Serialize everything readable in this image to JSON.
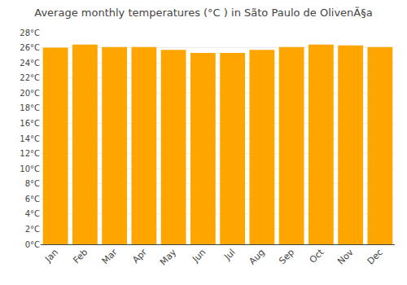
{
  "chart_data": {
    "type": "bar",
    "title": "Average monthly temperatures (°C ) in Sãto Paulo de OlivenÃ§a",
    "categories": [
      "Jan",
      "Feb",
      "Mar",
      "Apr",
      "May",
      "Jun",
      "Jul",
      "Aug",
      "Sep",
      "Oct",
      "Nov",
      "Dec"
    ],
    "values": [
      26.0,
      26.4,
      26.1,
      26.1,
      25.7,
      25.3,
      25.3,
      25.7,
      26.1,
      26.4,
      26.3,
      26.1
    ],
    "color": "#FFA500",
    "ylim": [
      0,
      28
    ],
    "yticks": [
      {
        "value": 0,
        "label": "0°C"
      },
      {
        "value": 2,
        "label": "2°C"
      },
      {
        "value": 4,
        "label": "4°C"
      },
      {
        "value": 6,
        "label": "6°C"
      },
      {
        "value": 8,
        "label": "8°C"
      },
      {
        "value": 10,
        "label": "10°C"
      },
      {
        "value": 12,
        "label": "12°C"
      },
      {
        "value": 14,
        "label": "14°C"
      },
      {
        "value": 16,
        "label": "16°C"
      },
      {
        "value": 18,
        "label": "18°C"
      },
      {
        "value": 20,
        "label": "20°C"
      },
      {
        "value": 22,
        "label": "22°C"
      },
      {
        "value": 24,
        "label": "24°C"
      },
      {
        "value": 26,
        "label": "26°C"
      },
      {
        "value": 28,
        "label": "28°C"
      }
    ],
    "grid": true
  }
}
